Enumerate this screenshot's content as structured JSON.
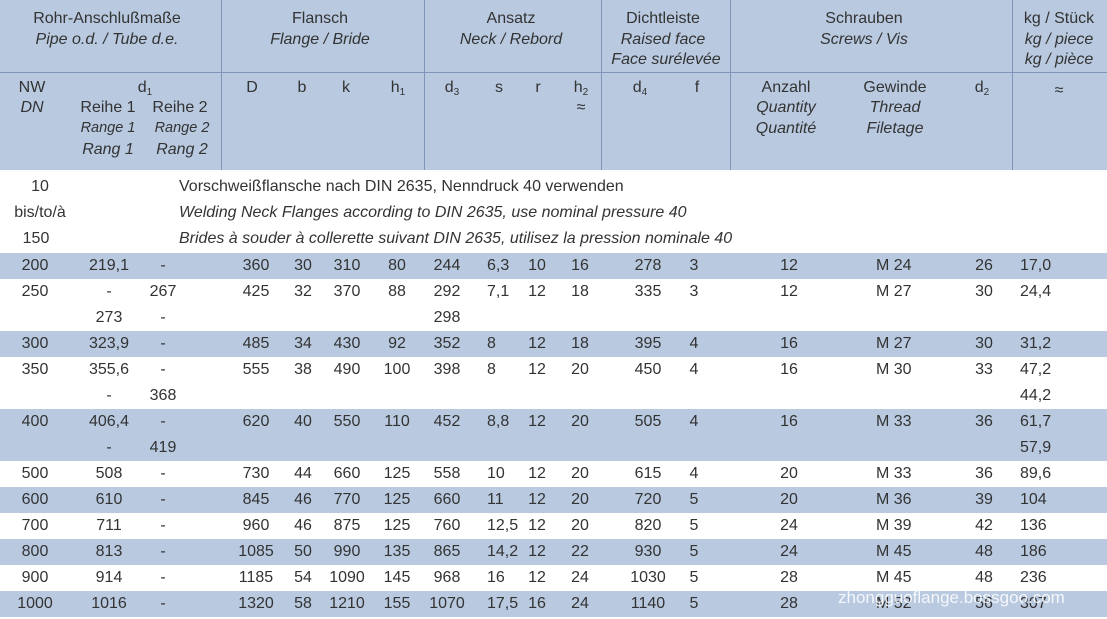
{
  "header": {
    "g1": {
      "l1": "Rohr-Anschlußmaße",
      "l2": "Pipe o.d. / Tube d.e."
    },
    "g2": {
      "l1": "Flansch",
      "l2": "Flange / Bride"
    },
    "g3": {
      "l1": "Ansatz",
      "l2": "Neck / Rebord"
    },
    "g4": {
      "l1": "Dichtleiste",
      "l2": "Raised face",
      "l3": "Face surélevée"
    },
    "g5": {
      "l1": "Schrauben",
      "l2": "Screws / Vis"
    },
    "g6": {
      "l1": "kg / Stück",
      "l2": "kg / piece",
      "l3": "kg / pièce",
      "approx": "≈"
    },
    "nw": "NW",
    "dn": "DN",
    "d": "d",
    "d_sub": "1",
    "reihe1": "Reihe 1",
    "range1": "Range 1",
    "rang1": "Rang 1",
    "reihe2": "Reihe 2",
    "range2": "Range 2",
    "rang2": "Rang 2",
    "D": "D",
    "b": "b",
    "k": "k",
    "h": "h",
    "h_sub": "1",
    "d3": "d",
    "d3_sub": "3",
    "s": "s",
    "r": "r",
    "h2": "h",
    "h2_sub": "2",
    "h2_approx": "≈",
    "d4": "d",
    "d4_sub": "4",
    "f": "f",
    "anzahl": "Anzahl",
    "quantity": "Quantity",
    "quantite": "Quantité",
    "gewinde": "Gewinde",
    "thread": "Thread",
    "filetage": "Filetage",
    "d2": "d",
    "d2_sub": "2"
  },
  "note": {
    "nw1": "10",
    "nw2": "bis/to/à",
    "nw3": "150",
    "de": "Vorschweißflansche nach DIN 2635, Nenndruck 40 verwenden",
    "en": "Welding Neck Flanges according to DIN 2635, use nominal pressure 40",
    "fr": "Brides à souder à collerette suivant DIN 2635, utilisez la pression nominale 40"
  },
  "rows": [
    {
      "nw": "200",
      "r1": "219,1",
      "r2": "-",
      "D": "360",
      "b": "30",
      "k": "310",
      "h1": "80",
      "d3": "244",
      "s": "6,3",
      "r": "10",
      "h2": "16",
      "d4": "278",
      "f": "3",
      "qty": "12",
      "thr": "M 24",
      "d2": "26",
      "kg": "17,0"
    },
    {
      "nw": "250",
      "r1": "-",
      "r2": "267",
      "D": "425",
      "b": "32",
      "k": "370",
      "h1": "88",
      "d3": "292",
      "s": "7,1",
      "r": "12",
      "h2": "18",
      "d4": "335",
      "f": "3",
      "qty": "12",
      "thr": "M 27",
      "d2": "30",
      "kg": "24,4"
    },
    {
      "nw": "",
      "r1": "273",
      "r2": "-",
      "D": "",
      "b": "",
      "k": "",
      "h1": "",
      "d3": "298",
      "s": "",
      "r": "",
      "h2": "",
      "d4": "",
      "f": "",
      "qty": "",
      "thr": "",
      "d2": "",
      "kg": ""
    },
    {
      "nw": "300",
      "r1": "323,9",
      "r2": "-",
      "D": "485",
      "b": "34",
      "k": "430",
      "h1": "92",
      "d3": "352",
      "s": "8",
      "r": "12",
      "h2": "18",
      "d4": "395",
      "f": "4",
      "qty": "16",
      "thr": "M 27",
      "d2": "30",
      "kg": "31,2"
    },
    {
      "nw": "350",
      "r1": "355,6",
      "r2": "-",
      "D": "555",
      "b": "38",
      "k": "490",
      "h1": "100",
      "d3": "398",
      "s": "8",
      "r": "12",
      "h2": "20",
      "d4": "450",
      "f": "4",
      "qty": "16",
      "thr": "M 30",
      "d2": "33",
      "kg": "47,2"
    },
    {
      "nw": "",
      "r1": "-",
      "r2": "368",
      "D": "",
      "b": "",
      "k": "",
      "h1": "",
      "d3": "",
      "s": "",
      "r": "",
      "h2": "",
      "d4": "",
      "f": "",
      "qty": "",
      "thr": "",
      "d2": "",
      "kg": "44,2"
    },
    {
      "nw": "400",
      "r1": "406,4",
      "r2": "-",
      "D": "620",
      "b": "40",
      "k": "550",
      "h1": "110",
      "d3": "452",
      "s": "8,8",
      "r": "12",
      "h2": "20",
      "d4": "505",
      "f": "4",
      "qty": "16",
      "thr": "M 33",
      "d2": "36",
      "kg": "61,7"
    },
    {
      "nw": "",
      "r1": "-",
      "r2": "419",
      "D": "",
      "b": "",
      "k": "",
      "h1": "",
      "d3": "",
      "s": "",
      "r": "",
      "h2": "",
      "d4": "",
      "f": "",
      "qty": "",
      "thr": "",
      "d2": "",
      "kg": "57,9"
    },
    {
      "nw": "500",
      "r1": "508",
      "r2": "-",
      "D": "730",
      "b": "44",
      "k": "660",
      "h1": "125",
      "d3": "558",
      "s": "10",
      "r": "12",
      "h2": "20",
      "d4": "615",
      "f": "4",
      "qty": "20",
      "thr": "M 33",
      "d2": "36",
      "kg": "89,6"
    },
    {
      "nw": "600",
      "r1": "610",
      "r2": "-",
      "D": "845",
      "b": "46",
      "k": "770",
      "h1": "125",
      "d3": "660",
      "s": "11",
      "r": "12",
      "h2": "20",
      "d4": "720",
      "f": "5",
      "qty": "20",
      "thr": "M 36",
      "d2": "39",
      "kg": "104"
    },
    {
      "nw": "700",
      "r1": "711",
      "r2": "-",
      "D": "960",
      "b": "46",
      "k": "875",
      "h1": "125",
      "d3": "760",
      "s": "12,5",
      "r": "12",
      "h2": "20",
      "d4": "820",
      "f": "5",
      "qty": "24",
      "thr": "M 39",
      "d2": "42",
      "kg": "136"
    },
    {
      "nw": "800",
      "r1": "813",
      "r2": "-",
      "D": "1085",
      "b": "50",
      "k": "990",
      "h1": "135",
      "d3": "865",
      "s": "14,2",
      "r": "12",
      "h2": "22",
      "d4": "930",
      "f": "5",
      "qty": "24",
      "thr": "M 45",
      "d2": "48",
      "kg": "186"
    },
    {
      "nw": "900",
      "r1": "914",
      "r2": "-",
      "D": "1185",
      "b": "54",
      "k": "1090",
      "h1": "145",
      "d3": "968",
      "s": "16",
      "r": "12",
      "h2": "24",
      "d4": "1030",
      "f": "5",
      "qty": "28",
      "thr": "M 45",
      "d2": "48",
      "kg": "236"
    },
    {
      "nw": "1000",
      "r1": "1016",
      "r2": "-",
      "D": "1320",
      "b": "58",
      "k": "1210",
      "h1": "155",
      "d3": "1070",
      "s": "17,5",
      "r": "16",
      "h2": "24",
      "d4": "1140",
      "f": "5",
      "qty": "28",
      "thr": "M 52",
      "d2": "56",
      "kg": "307"
    }
  ],
  "watermark": "zhongguoflange.bossgoo.com"
}
